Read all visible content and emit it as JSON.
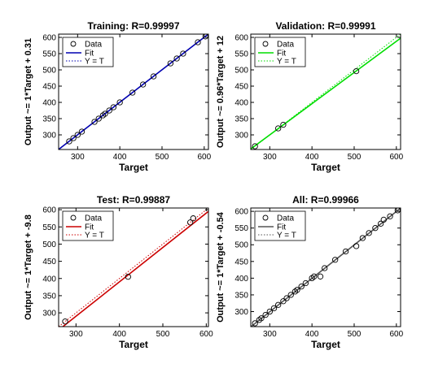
{
  "chart_data": [
    {
      "type": "scatter",
      "title": "Training: R=0.99997",
      "xlabel": "Target",
      "ylabel": "Output ~= 1*Target + 0.31",
      "xlim": [
        255,
        610
      ],
      "ylim": [
        255,
        610
      ],
      "xticks": [
        300,
        400,
        500,
        600
      ],
      "yticks": [
        300,
        350,
        400,
        450,
        500,
        550,
        600
      ],
      "fit_color": "#0000b0",
      "fit": {
        "slope": 1.0,
        "intercept": 0.31
      },
      "legend": [
        "Data",
        "Fit",
        "Y = T"
      ],
      "legend_position": "top-left",
      "series": [
        {
          "name": "Data",
          "x": [
            280,
            290,
            300,
            310,
            340,
            350,
            360,
            365,
            375,
            385,
            400,
            430,
            455,
            480,
            520,
            535,
            550,
            585,
            603
          ],
          "y": [
            280,
            290,
            300,
            310,
            340,
            350,
            360,
            365,
            375,
            385,
            400,
            430,
            455,
            480,
            520,
            535,
            550,
            585,
            603
          ]
        }
      ]
    },
    {
      "type": "scatter",
      "title": "Validation: R=0.99991",
      "xlabel": "Target",
      "ylabel": "Output ~= 0.96*Target + 12",
      "xlim": [
        255,
        610
      ],
      "ylim": [
        255,
        610
      ],
      "xticks": [
        300,
        400,
        500,
        600
      ],
      "yticks": [
        300,
        350,
        400,
        450,
        500,
        550,
        600
      ],
      "fit_color": "#00dd00",
      "fit": {
        "slope": 0.96,
        "intercept": 12
      },
      "legend": [
        "Data",
        "Fit",
        "Y = T"
      ],
      "legend_position": "top-left",
      "series": [
        {
          "name": "Data",
          "x": [
            265,
            320,
            332,
            505
          ],
          "y": [
            265,
            320,
            331,
            496
          ]
        }
      ]
    },
    {
      "type": "scatter",
      "title": "Test: R=0.99887",
      "xlabel": "Target",
      "ylabel": "Output ~= 1*Target + -9.8",
      "xlim": [
        260,
        605
      ],
      "ylim": [
        260,
        605
      ],
      "xticks": [
        300,
        400,
        500,
        600
      ],
      "yticks": [
        300,
        350,
        400,
        450,
        500,
        550,
        600
      ],
      "fit_color": "#cc0000",
      "fit": {
        "slope": 1.0,
        "intercept": -9.8
      },
      "legend": [
        "Data",
        "Fit",
        "Y = T"
      ],
      "legend_position": "top-left",
      "series": [
        {
          "name": "Data",
          "x": [
            275,
            420,
            563,
            570
          ],
          "y": [
            275,
            405,
            563,
            575
          ]
        }
      ]
    },
    {
      "type": "scatter",
      "title": "All: R=0.99966",
      "xlabel": "Target",
      "ylabel": "Output ~= 1*Target + -0.54",
      "xlim": [
        255,
        610
      ],
      "ylim": [
        255,
        610
      ],
      "xticks": [
        300,
        400,
        500,
        600
      ],
      "yticks": [
        300,
        350,
        400,
        450,
        500,
        550,
        600
      ],
      "fit_color": "#555555",
      "fit": {
        "slope": 1.0,
        "intercept": -0.54
      },
      "legend": [
        "Data",
        "Fit",
        "Y = T"
      ],
      "legend_position": "top-left",
      "series": [
        {
          "name": "Data",
          "x": [
            265,
            275,
            280,
            290,
            300,
            310,
            320,
            332,
            340,
            350,
            360,
            365,
            375,
            385,
            400,
            405,
            420,
            430,
            455,
            480,
            505,
            520,
            535,
            550,
            563,
            570,
            585,
            603
          ],
          "y": [
            265,
            275,
            280,
            290,
            300,
            310,
            320,
            331,
            340,
            350,
            360,
            365,
            375,
            385,
            400,
            405,
            405,
            430,
            455,
            480,
            496,
            520,
            535,
            550,
            563,
            575,
            585,
            603
          ]
        }
      ]
    }
  ]
}
